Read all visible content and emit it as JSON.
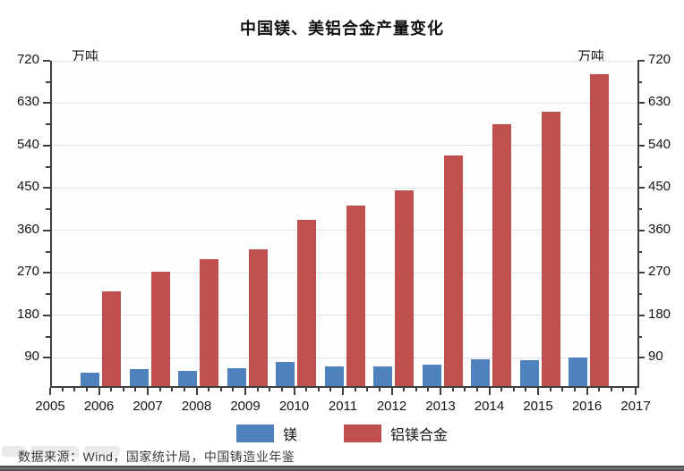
{
  "title": "中国镁、美铝合金产量变化",
  "unit_label_left": "万吨",
  "unit_label_right": "万吨",
  "source_note": "数据来源：Wind，国家统计局，中国铸造业年鉴",
  "colors": {
    "magnesium": "#4f81bd",
    "aluminum_alloy": "#c0504d",
    "gridline": "#dde3ec",
    "axis": "#3f3f3f",
    "text": "#141414"
  },
  "legend": [
    {
      "label": "镁",
      "color_key": "magnesium"
    },
    {
      "label": "铝镁合金",
      "color_key": "aluminum_alloy"
    }
  ],
  "chart_data": {
    "type": "bar",
    "title": "中国镁、美铝合金产量变化",
    "ylabel": "万吨",
    "ylabel_right": "万吨",
    "categories": [
      2006,
      2007,
      2008,
      2009,
      2010,
      2011,
      2012,
      2013,
      2014,
      2015,
      2016
    ],
    "x_axis_ticks": [
      2005,
      2006,
      2007,
      2008,
      2009,
      2010,
      2011,
      2012,
      2013,
      2014,
      2015,
      2016,
      2017
    ],
    "series": [
      {
        "name": "镁",
        "color_key": "magnesium",
        "values": [
          58,
          66,
          63,
          67,
          82,
          71,
          71,
          76,
          87,
          85,
          91
        ]
      },
      {
        "name": "铝镁合金",
        "color_key": "aluminum_alloy",
        "values": [
          231,
          273,
          299,
          320,
          383,
          413,
          445,
          520,
          585,
          612,
          692
        ]
      }
    ],
    "y_ticks": [
      90,
      180,
      270,
      360,
      450,
      540,
      630,
      720
    ],
    "y_minor_step": 45,
    "ylim": [
      30,
      720
    ],
    "dual_axis": true,
    "grid": true,
    "legend_position": "bottom"
  }
}
